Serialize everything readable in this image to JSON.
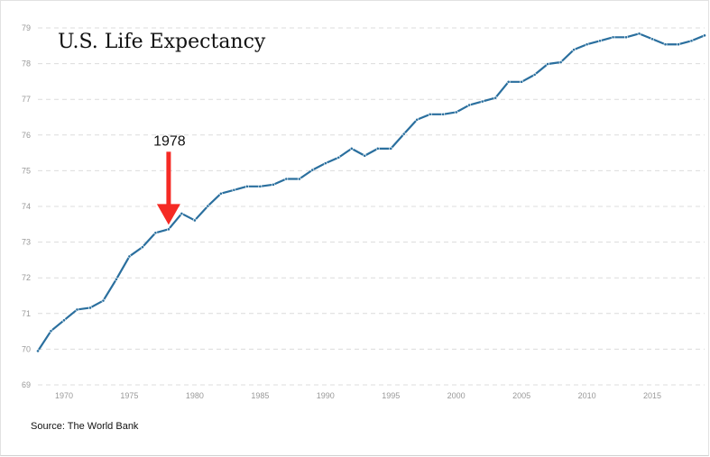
{
  "chart_data": {
    "type": "line",
    "title": "U.S. Life Expectancy",
    "xlabel": "",
    "ylabel": "",
    "xlim": [
      1968,
      2019
    ],
    "ylim": [
      69,
      79
    ],
    "grid": true,
    "xticks": [
      1970,
      1975,
      1980,
      1985,
      1990,
      1995,
      2000,
      2005,
      2010,
      2015
    ],
    "yticks": [
      69,
      70,
      71,
      72,
      73,
      74,
      75,
      76,
      77,
      78,
      79
    ],
    "color": "#2a6f9e",
    "x": [
      1968,
      1969,
      1970,
      1971,
      1972,
      1973,
      1974,
      1975,
      1976,
      1977,
      1978,
      1979,
      1980,
      1981,
      1982,
      1983,
      1984,
      1985,
      1986,
      1987,
      1988,
      1989,
      1990,
      1991,
      1992,
      1993,
      1994,
      1995,
      1996,
      1997,
      1998,
      1999,
      2000,
      2001,
      2002,
      2003,
      2004,
      2005,
      2006,
      2007,
      2008,
      2009,
      2010,
      2011,
      2012,
      2013,
      2014,
      2015,
      2016,
      2017,
      2018,
      2019
    ],
    "y": [
      69.95,
      70.51,
      70.81,
      71.11,
      71.16,
      71.36,
      71.96,
      72.6,
      72.86,
      73.26,
      73.36,
      73.8,
      73.61,
      74.01,
      74.36,
      74.46,
      74.56,
      74.56,
      74.61,
      74.77,
      74.77,
      75.02,
      75.21,
      75.37,
      75.62,
      75.42,
      75.62,
      75.62,
      76.03,
      76.43,
      76.58,
      76.58,
      76.64,
      76.84,
      76.94,
      77.04,
      77.49,
      77.49,
      77.69,
      77.99,
      78.04,
      78.39,
      78.54,
      78.64,
      78.74,
      78.74,
      78.84,
      78.69,
      78.54,
      78.54,
      78.64,
      78.79
    ],
    "annotation": {
      "label": "1978",
      "x": 1978,
      "y": 73.36,
      "arrow_color": "#f52a24"
    }
  },
  "source": "Source: The World Bank"
}
